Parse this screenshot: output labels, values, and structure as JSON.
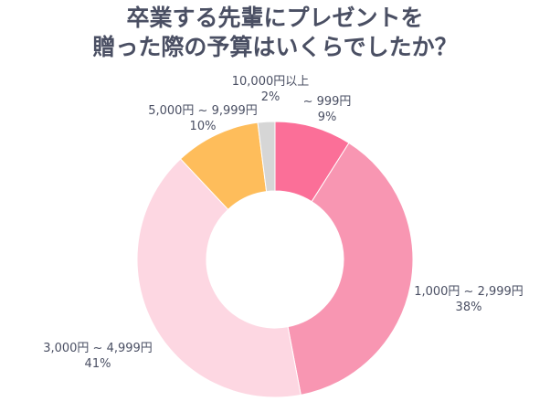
{
  "chart_data": {
    "type": "pie",
    "title": [
      "卒業する先輩にプレゼントを",
      "贈った際の予算はいくらでしたか？"
    ],
    "donut": true,
    "start": "top",
    "direction": "clockwise",
    "slices": [
      {
        "name": "~ 999円",
        "value": 9,
        "label": "9%",
        "color": "#fb6f98"
      },
      {
        "name": "1,000円 ~ 2,999円",
        "value": 38,
        "label": "38%",
        "color": "#f896b2"
      },
      {
        "name": "3,000円 ~ 4,999円",
        "value": 41,
        "label": "41%",
        "color": "#fdd7e2"
      },
      {
        "name": "5,000円 ~ 9,999円",
        "value": 10,
        "label": "10%",
        "color": "#febd5b"
      },
      {
        "name": "10,000円以上",
        "value": 2,
        "label": "2%",
        "color": "#d6d6d6"
      }
    ]
  }
}
